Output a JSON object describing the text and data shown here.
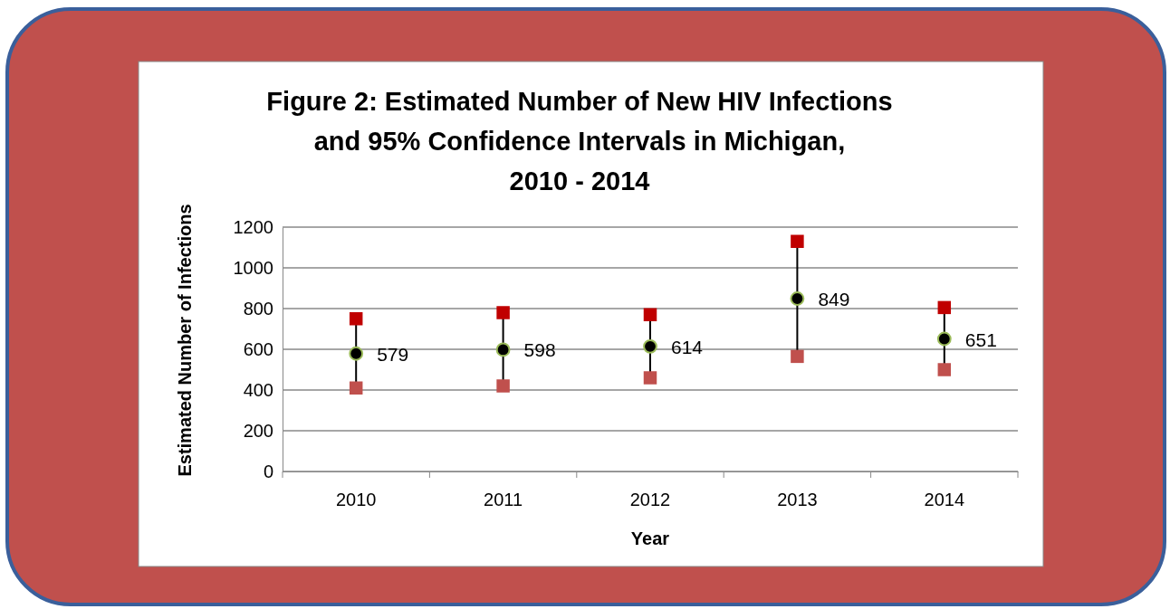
{
  "chart_data": {
    "type": "scatter",
    "title": "Figure 2: Estimated Number of New HIV Infections\nand 95% Confidence Intervals in Michigan,\n2010 - 2014",
    "xlabel": "Year",
    "ylabel": "Estimated Number of Infections",
    "categories": [
      "2010",
      "2011",
      "2012",
      "2013",
      "2014"
    ],
    "series": [
      {
        "marker": "square",
        "color": "#c00000",
        "values": [
          750,
          780,
          770,
          1130,
          805
        ]
      },
      {
        "marker": "square",
        "color": "#c0504d",
        "values": [
          410,
          420,
          460,
          565,
          500
        ]
      },
      {
        "marker": "circle",
        "color": "#000000",
        "values": [
          579,
          598,
          614,
          849,
          651
        ],
        "value_labels": [
          "579",
          "598",
          "614",
          "849",
          "651"
        ]
      }
    ],
    "ylim": [
      0,
      1200
    ],
    "yticks": [
      0,
      200,
      400,
      600,
      800,
      1000,
      1200
    ],
    "grid": "y"
  }
}
